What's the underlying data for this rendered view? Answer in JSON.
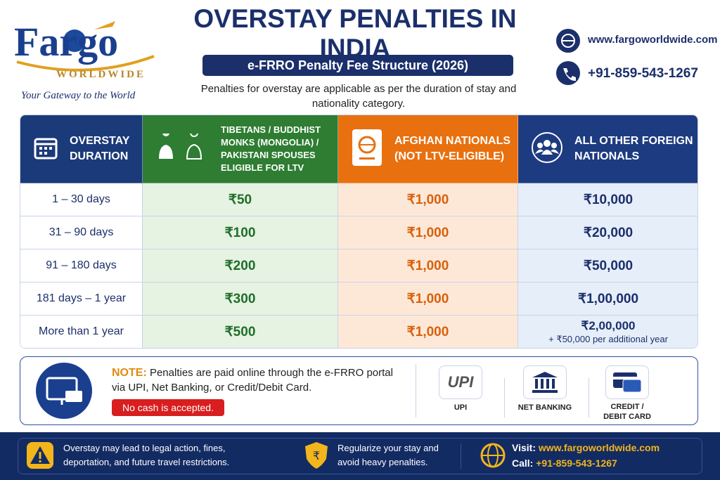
{
  "header": {
    "logo_name": "Fargo",
    "logo_sub": "WORLDWIDE",
    "tagline": "Your Gateway to the World",
    "title": "OVERSTAY PENALTIES IN INDIA",
    "subtitle": "e-FRRO Penalty Fee Structure (2026)",
    "intro": "Penalties for overstay are applicable as per the duration of stay and nationality category.",
    "website": "www.fargoworldwide.com",
    "phone": "+91-859-543-1267"
  },
  "table": {
    "columns": [
      "OVERSTAY DURATION",
      "TIBETANS / BUDDHIST MONKS (MONGOLIA) / PAKISTANI SPOUSES ELIGIBLE FOR LTV",
      "AFGHAN NATIONALS (NOT LTV-ELIGIBLE)",
      "ALL OTHER FOREIGN NATIONALS"
    ],
    "rows": [
      [
        "1 – 30 days",
        "₹50",
        "₹1,000",
        "₹10,000"
      ],
      [
        "31 – 90 days",
        "₹100",
        "₹1,000",
        "₹20,000"
      ],
      [
        "91 – 180 days",
        "₹200",
        "₹1,000",
        "₹50,000"
      ],
      [
        "181 days – 1 year",
        "₹300",
        "₹1,000",
        "₹1,00,000"
      ],
      [
        "More than 1 year",
        "₹500",
        "₹1,000",
        "₹2,00,000"
      ]
    ],
    "extra_note": "+ ₹50,000 per additional year"
  },
  "note": {
    "label": "NOTE:",
    "text": "Penalties are paid online through the e-FRRO portal via UPI, Net Banking, or Credit/Debit Card.",
    "warning": "No cash is accepted.",
    "upi_logo": "UPI",
    "methods": [
      "UPI",
      "NET BANKING",
      "CREDIT / DEBIT CARD"
    ]
  },
  "footer": {
    "warning": "Overstay may lead to legal action, fines, deportation, and future travel restrictions.",
    "advice": "Regularize your stay and avoid heavy penalties.",
    "visit_label": "Visit:",
    "website": "www.fargoworldwide.com",
    "call_label": "Call:",
    "phone": "+91-859-543-1267"
  }
}
